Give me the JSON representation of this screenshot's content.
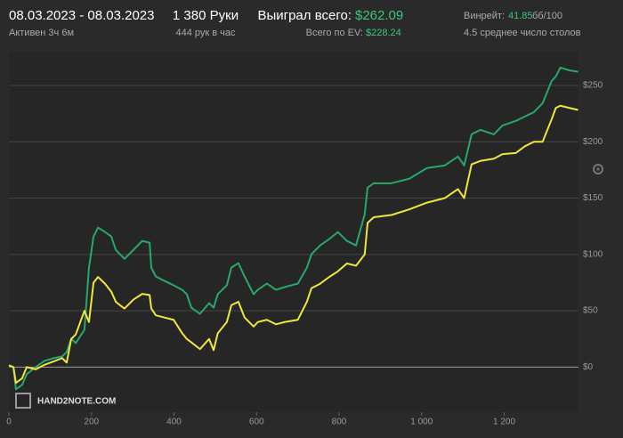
{
  "header": {
    "date_range": "08.03.2023 - 08.03.2023",
    "active": "Активен 3ч 6м",
    "hands": "1 380 Руки",
    "hands_per_hour": "444 рук в час",
    "won_label": "Выиграл всего:",
    "won_value": "$262.09",
    "ev_label": "Всего по EV:",
    "ev_value": "$228.24",
    "winrate_label": "Винрейт:",
    "winrate_value": "41.85",
    "winrate_unit": "бб/100",
    "tables": "4.5 среднее число столов"
  },
  "logo": "HAND2NOTE.COM",
  "chart_data": {
    "type": "line",
    "x": [
      0,
      11,
      17,
      32,
      43,
      65,
      86,
      108,
      129,
      140,
      151,
      162,
      183,
      194,
      205,
      216,
      233,
      248,
      259,
      269,
      280,
      302,
      323,
      341,
      345,
      356,
      377,
      399,
      420,
      431,
      442,
      463,
      485,
      496,
      506,
      528,
      539,
      556,
      571,
      593,
      603,
      625,
      647,
      668,
      700,
      722,
      733,
      754,
      776,
      797,
      819,
      841,
      862,
      869,
      884,
      927,
      970,
      1013,
      1056,
      1088,
      1103,
      1121,
      1142,
      1175,
      1196,
      1228,
      1250,
      1272,
      1293,
      1315,
      1325,
      1336,
      1358,
      1379
    ],
    "series": [
      {
        "color": "#27a86b",
        "values": [
          1.6,
          0,
          -19.7,
          -15.8,
          -6.3,
          0,
          5.5,
          7.9,
          9.5,
          13.4,
          25.2,
          21.3,
          33.1,
          88.3,
          115.9,
          123.8,
          119.9,
          115.9,
          104.1,
          100.2,
          96.2,
          104.1,
          112,
          110.4,
          88.3,
          80.4,
          76.5,
          72.6,
          68.6,
          64.7,
          52.8,
          47.3,
          56.8,
          52.8,
          64.7,
          72.6,
          88.3,
          92.3,
          80.4,
          64.7,
          68.6,
          74.1,
          68.6,
          71,
          74.1,
          88.3,
          100.2,
          108,
          113.6,
          119.9,
          112,
          108,
          135.6,
          159.3,
          163.2,
          163.2,
          167.2,
          176.7,
          179,
          186.9,
          179,
          206.6,
          210.6,
          206.6,
          214.5,
          218.5,
          222.4,
          226.3,
          234.2,
          253.9,
          257.9,
          265.8,
          263.4,
          262.09
        ]
      },
      {
        "color": "#f0e63c",
        "values": [
          1.6,
          0,
          -14,
          -10,
          0,
          -2,
          2,
          5,
          8,
          4,
          25,
          29,
          50,
          40,
          75,
          80,
          74,
          67,
          58,
          55,
          52,
          60,
          65,
          64,
          52,
          46,
          44,
          42,
          30,
          25,
          22,
          16,
          25,
          15,
          30,
          40,
          55,
          58,
          44,
          36,
          40,
          42,
          38,
          40,
          42,
          58,
          70,
          74,
          80,
          85,
          92,
          90,
          100,
          128,
          133,
          135,
          140,
          146,
          150,
          158,
          150,
          180,
          183,
          185,
          189,
          190,
          196,
          200,
          200,
          220,
          230,
          232,
          230,
          228.24
        ]
      }
    ],
    "xlim": [
      0,
      1380
    ],
    "ylim": [
      -40,
      280
    ],
    "xticks": [
      0,
      200,
      400,
      600,
      800,
      {
        "value": 1000,
        "label": "1 000"
      },
      {
        "value": 1200,
        "label": "1 200"
      }
    ],
    "yticks": [
      {
        "value": 0,
        "label": "$0"
      },
      {
        "value": 50,
        "label": "$50"
      },
      {
        "value": 100,
        "label": "$100"
      },
      {
        "value": 150,
        "label": "$150"
      },
      {
        "value": 200,
        "label": "$200"
      },
      {
        "value": 250,
        "label": "$250"
      }
    ],
    "grid": true
  }
}
